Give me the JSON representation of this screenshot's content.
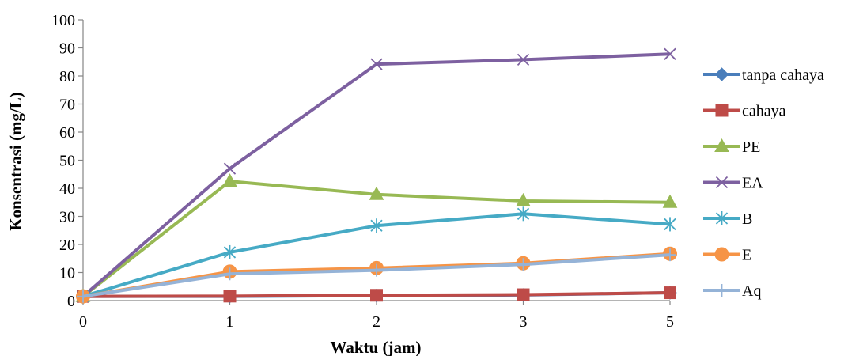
{
  "chart_data": {
    "type": "line",
    "title": "",
    "xlabel": "Waktu (jam)",
    "ylabel": "Konsentrasi (mg/L)",
    "categories": [
      "0",
      "1",
      "2",
      "3",
      "5"
    ],
    "ylim": [
      0,
      100
    ],
    "yticks": [
      "0",
      "10",
      "20",
      "30",
      "40",
      "50",
      "60",
      "70",
      "80",
      "90",
      "100"
    ],
    "grid": false,
    "legend_position": "right",
    "series": [
      {
        "name": "tanpa cahaya",
        "values": [
          1.5,
          1.5,
          1.8,
          2.0,
          2.8
        ],
        "color": "#4A7EBB",
        "marker": "diamond"
      },
      {
        "name": "cahaya",
        "values": [
          1.5,
          1.6,
          1.9,
          2.1,
          2.8
        ],
        "color": "#BE4B48",
        "marker": "square"
      },
      {
        "name": "PE",
        "values": [
          1.5,
          42.5,
          37.8,
          35.5,
          35.0
        ],
        "color": "#98B954",
        "marker": "triangle"
      },
      {
        "name": "EA",
        "values": [
          1.5,
          47.0,
          84.2,
          85.8,
          87.8
        ],
        "color": "#7D60A0",
        "marker": "x"
      },
      {
        "name": "B",
        "values": [
          1.5,
          17.2,
          26.7,
          30.9,
          27.2
        ],
        "color": "#46AAC5",
        "marker": "star"
      },
      {
        "name": "E",
        "values": [
          1.5,
          10.3,
          11.6,
          13.3,
          16.7
        ],
        "color": "#F69446",
        "marker": "circle"
      },
      {
        "name": "Aq",
        "values": [
          1.5,
          9.5,
          10.8,
          12.9,
          16.3
        ],
        "color": "#95B3D7",
        "marker": "plus"
      }
    ]
  }
}
